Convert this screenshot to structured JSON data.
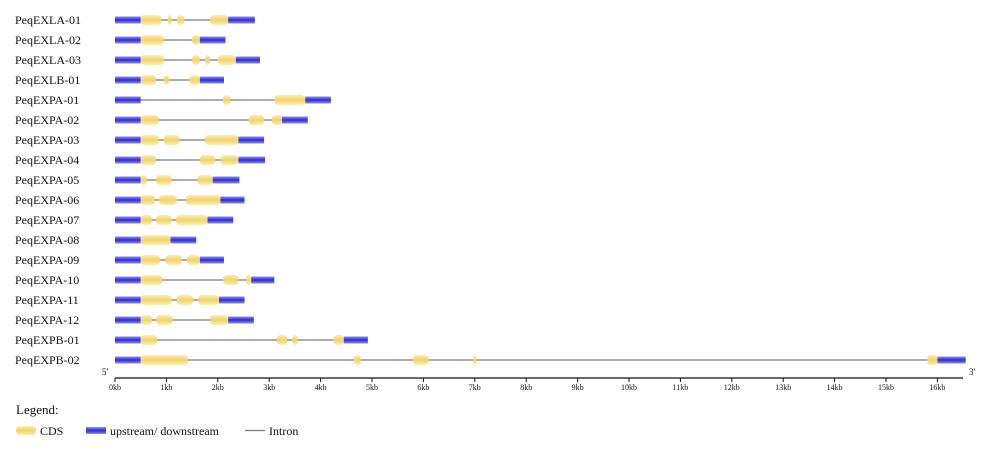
{
  "colors": {
    "cds": "#f2d36b",
    "cds_highlight": "#fbeeb0",
    "utr": "#2b2bd6",
    "utr_highlight": "#8f8ff5",
    "intron": "#7a7a7a",
    "axis": "#111111"
  },
  "chart_data": {
    "type": "gene-structure",
    "x_unit": "kb",
    "xlim": [
      0,
      16.5
    ],
    "ticks": [
      "0kb",
      "1kb",
      "2kb",
      "3kb",
      "4kb",
      "5kb",
      "6kb",
      "7kb",
      "8kb",
      "9kb",
      "10kb",
      "11kb",
      "12kb",
      "13kb",
      "14kb",
      "15kb",
      "16kb"
    ],
    "tick_values": [
      0,
      1,
      2,
      3,
      4,
      5,
      6,
      7,
      8,
      9,
      10,
      11,
      12,
      13,
      14,
      15,
      16
    ],
    "five_prime_label": "5'",
    "three_prime_label": "3'",
    "genes": [
      {
        "name": "PeqEXLA-01",
        "length": 2.72,
        "cds": [
          [
            0.5,
            0.9
          ],
          [
            1.03,
            1.1
          ],
          [
            1.2,
            1.35
          ],
          [
            1.85,
            2.2
          ]
        ]
      },
      {
        "name": "PeqEXLA-02",
        "length": 2.15,
        "cds": [
          [
            0.5,
            0.95
          ],
          [
            1.5,
            1.65
          ]
        ]
      },
      {
        "name": "PeqEXLA-03",
        "length": 2.82,
        "cds": [
          [
            0.5,
            0.95
          ],
          [
            1.5,
            1.65
          ],
          [
            1.75,
            1.85
          ],
          [
            2.0,
            2.35
          ]
        ]
      },
      {
        "name": "PeqEXLB-01",
        "length": 2.12,
        "cds": [
          [
            0.5,
            0.8
          ],
          [
            0.95,
            1.05
          ],
          [
            1.45,
            1.65
          ]
        ]
      },
      {
        "name": "PeqEXPA-01",
        "length": 4.2,
        "cds": [
          [
            2.1,
            2.25
          ],
          [
            3.1,
            3.7
          ]
        ]
      },
      {
        "name": "PeqEXPA-02",
        "length": 3.75,
        "cds": [
          [
            0.5,
            0.85
          ],
          [
            2.6,
            2.9
          ],
          [
            3.05,
            3.25
          ]
        ]
      },
      {
        "name": "PeqEXPA-03",
        "length": 2.9,
        "cds": [
          [
            0.5,
            0.85
          ],
          [
            0.95,
            1.25
          ],
          [
            1.75,
            2.4
          ]
        ]
      },
      {
        "name": "PeqEXPA-04",
        "length": 2.92,
        "cds": [
          [
            0.5,
            0.8
          ],
          [
            1.65,
            1.95
          ],
          [
            2.05,
            2.4
          ]
        ]
      },
      {
        "name": "PeqEXPA-05",
        "length": 2.42,
        "cds": [
          [
            0.5,
            0.62
          ],
          [
            0.8,
            1.1
          ],
          [
            1.6,
            1.9
          ]
        ]
      },
      {
        "name": "PeqEXPA-06",
        "length": 2.52,
        "cds": [
          [
            0.5,
            0.78
          ],
          [
            0.85,
            1.2
          ],
          [
            1.38,
            2.05
          ]
        ]
      },
      {
        "name": "PeqEXPA-07",
        "length": 2.3,
        "cds": [
          [
            0.5,
            0.72
          ],
          [
            0.8,
            1.1
          ],
          [
            1.18,
            1.8
          ]
        ]
      },
      {
        "name": "PeqEXPA-08",
        "length": 1.58,
        "cds": [
          [
            0.5,
            1.08
          ]
        ]
      },
      {
        "name": "PeqEXPA-09",
        "length": 2.12,
        "cds": [
          [
            0.5,
            0.88
          ],
          [
            0.98,
            1.3
          ],
          [
            1.4,
            1.65
          ]
        ]
      },
      {
        "name": "PeqEXPA-10",
        "length": 3.1,
        "cds": [
          [
            0.5,
            0.92
          ],
          [
            2.1,
            2.4
          ],
          [
            2.55,
            2.65
          ]
        ]
      },
      {
        "name": "PeqEXPA-11",
        "length": 2.52,
        "cds": [
          [
            0.5,
            1.1
          ],
          [
            1.2,
            1.52
          ],
          [
            1.62,
            2.02
          ]
        ]
      },
      {
        "name": "PeqEXPA-12",
        "length": 2.7,
        "cds": [
          [
            0.5,
            0.72
          ],
          [
            0.8,
            1.12
          ],
          [
            1.85,
            2.2
          ]
        ]
      },
      {
        "name": "PeqEXPB-01",
        "length": 4.92,
        "cds": [
          [
            0.5,
            0.82
          ],
          [
            3.15,
            3.35
          ],
          [
            3.45,
            3.55
          ],
          [
            4.25,
            4.45
          ]
        ]
      },
      {
        "name": "PeqEXPB-02",
        "length": 16.55,
        "cds": [
          [
            0.5,
            1.42
          ],
          [
            4.65,
            4.78
          ],
          [
            5.8,
            6.1
          ],
          [
            6.97,
            7.03
          ],
          [
            15.8,
            16.0
          ]
        ]
      }
    ]
  },
  "legend": {
    "title": "Legend:",
    "cds_label": "CDS",
    "utr_label": "upstream/ downstream",
    "intron_label": "Intron"
  }
}
